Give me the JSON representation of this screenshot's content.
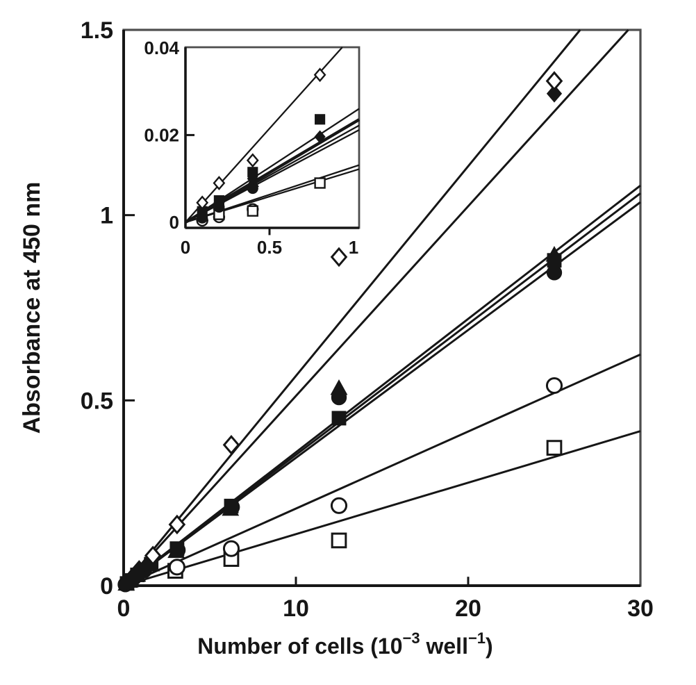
{
  "figure": {
    "background": "#ffffff",
    "ink": "#161616",
    "frame": "#4e4e4e",
    "ylabel": "Absorbance at 450 nm",
    "xlabel_parts": [
      {
        "t": "Number of cells (10",
        "sup": false
      },
      {
        "t": "−3",
        "sup": true
      },
      {
        "t": " well",
        "sup": false
      },
      {
        "t": "−1",
        "sup": true
      },
      {
        "t": ")",
        "sup": false
      }
    ]
  },
  "chart_data": [
    {
      "id": "main",
      "type": "scatter",
      "title": "",
      "xlabel": "Number of cells (10^-3 well^-1)",
      "ylabel": "Absorbance at 450 nm",
      "xlim": [
        0,
        30
      ],
      "ylim": [
        0,
        1.5
      ],
      "grid": false,
      "legend": "none",
      "xticks": {
        "values": [
          0,
          10,
          20,
          30
        ],
        "labels": [
          "0",
          "10",
          "20",
          "30"
        ],
        "marked": [
          10,
          20
        ]
      },
      "yticks": {
        "values": [
          0,
          0.5,
          1,
          1.5
        ],
        "labels": [
          "0",
          "0.5",
          "1",
          "1.5"
        ],
        "marked": [
          0.5,
          1
        ]
      },
      "series": [
        {
          "name": "open-square",
          "marker": "square-open",
          "slope": 0.0139,
          "points": [
            [
              3.0,
              0.04
            ],
            [
              6.25,
              0.072
            ],
            [
              12.5,
              0.122
            ],
            [
              25,
              0.372
            ]
          ]
        },
        {
          "name": "open-circle",
          "marker": "circle-open",
          "slope": 0.0208,
          "points": [
            [
              3.1,
              0.05
            ],
            [
              6.25,
              0.1
            ],
            [
              12.5,
              0.216
            ],
            [
              25,
              0.54
            ]
          ]
        },
        {
          "name": "filled-circle",
          "marker": "circle-filled",
          "slope": 0.0345,
          "points": [
            [
              0.1,
              0.003
            ],
            [
              0.3,
              0.01
            ],
            [
              0.6,
              0.021
            ],
            [
              1.2,
              0.041
            ],
            [
              3.15,
              0.096
            ],
            [
              6.3,
              0.212
            ],
            [
              12.5,
              0.508
            ],
            [
              25,
              0.845
            ]
          ]
        },
        {
          "name": "filled-triangle",
          "marker": "triangle-filled",
          "slope": 0.0353,
          "points": [
            [
              0.15,
              0.004
            ],
            [
              0.4,
              0.013
            ],
            [
              0.8,
              0.028
            ],
            [
              1.6,
              0.056
            ],
            [
              3.05,
              0.092
            ],
            [
              6.2,
              0.206
            ],
            [
              12.5,
              0.532
            ],
            [
              25,
              0.892
            ]
          ]
        },
        {
          "name": "filled-square",
          "marker": "square-filled",
          "slope": 0.036,
          "points": [
            [
              0.2,
              0.006
            ],
            [
              0.4,
              0.014
            ],
            [
              0.8,
              0.029
            ],
            [
              1.6,
              0.058
            ],
            [
              3.1,
              0.1
            ],
            [
              6.25,
              0.215
            ],
            [
              12.5,
              0.452
            ],
            [
              25,
              0.878
            ]
          ]
        },
        {
          "name": "filled-diamond",
          "marker": "diamond-filled",
          "slope": 0.0512,
          "points": [
            [
              0.2,
              0.01
            ],
            [
              0.5,
              0.024
            ],
            [
              0.9,
              0.045
            ],
            [
              25,
              1.328
            ]
          ]
        },
        {
          "name": "open-diamond",
          "marker": "diamond-open",
          "slope": 0.0566,
          "points": [
            [
              1.7,
              0.081
            ],
            [
              3.1,
              0.165
            ],
            [
              6.25,
              0.38
            ],
            [
              12.5,
              0.887
            ],
            [
              25,
              1.362
            ]
          ]
        }
      ]
    },
    {
      "id": "inset",
      "type": "scatter",
      "title": "",
      "xlabel": "",
      "ylabel": "",
      "xlim": [
        0,
        1
      ],
      "ylim": [
        0,
        0.04
      ],
      "grid": false,
      "legend": "none",
      "xticks": {
        "values": [
          0,
          0.5,
          1
        ],
        "labels": [
          "0",
          "0.5",
          "1"
        ],
        "marked": [
          0.5
        ]
      },
      "yticks": {
        "values": [
          0,
          0.02,
          0.04
        ],
        "labels": [
          "0",
          "0.02",
          "0.04"
        ],
        "marked": [
          0.02
        ]
      },
      "series": [
        {
          "name": "open-circle",
          "marker": "circle-open",
          "slope": 0.0127,
          "points": [
            [
              0.1,
              0.0004
            ],
            [
              0.2,
              0.0012
            ],
            [
              0.4,
              0.003
            ]
          ]
        },
        {
          "name": "open-square",
          "marker": "square-open",
          "slope": 0.0118,
          "points": [
            [
              0.2,
              0.0018
            ],
            [
              0.4,
              0.0026
            ],
            [
              0.8,
              0.009
            ]
          ]
        },
        {
          "name": "filled-circle",
          "marker": "circle-filled",
          "slope": 0.0205,
          "points": [
            [
              0.1,
              0.001
            ],
            [
              0.2,
              0.0035
            ],
            [
              0.4,
              0.0078
            ]
          ]
        },
        {
          "name": "filled-triangle",
          "marker": "triangle-filled",
          "slope": 0.0215,
          "points": [
            [
              0.1,
              0.0014
            ],
            [
              0.2,
              0.004
            ],
            [
              0.4,
              0.0092
            ]
          ]
        },
        {
          "name": "filled-square",
          "marker": "square-filled",
          "slope": 0.0252,
          "points": [
            [
              0.1,
              0.0025
            ],
            [
              0.2,
              0.005
            ],
            [
              0.4,
              0.0115
            ],
            [
              0.8,
              0.0236
            ]
          ]
        },
        {
          "name": "filled-diamond",
          "marker": "diamond-filled",
          "slope": 0.0228,
          "thick": true,
          "points": [
            [
              0.1,
              0.0015
            ],
            [
              0.2,
              0.0045
            ],
            [
              0.4,
              0.01
            ],
            [
              0.8,
              0.0196
            ]
          ]
        },
        {
          "name": "open-diamond",
          "marker": "diamond-open",
          "slope": 0.043,
          "points": [
            [
              0.1,
              0.0045
            ],
            [
              0.2,
              0.009
            ],
            [
              0.4,
              0.0142
            ],
            [
              0.8,
              0.0338
            ]
          ]
        }
      ]
    }
  ]
}
